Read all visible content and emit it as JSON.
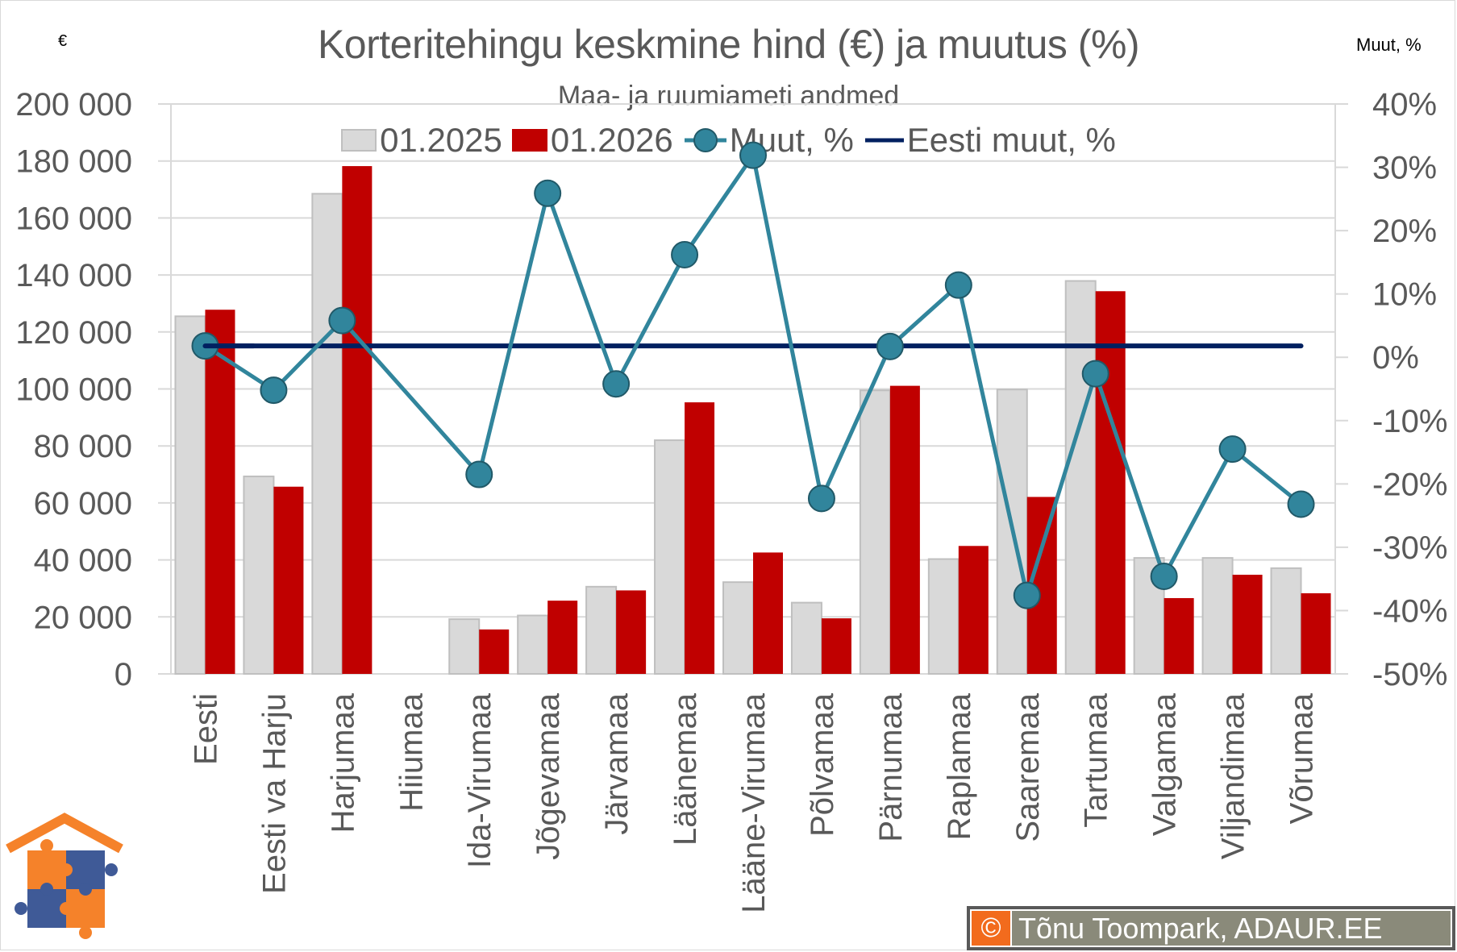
{
  "header": {
    "title": "Korteritehingu keskmine hind (€) ja muutus (%)",
    "subtitle": "Maa- ja ruumiameti andmed",
    "left_unit": "€",
    "right_unit": "Muut, %"
  },
  "legend": {
    "items": [
      {
        "label": "01.2025",
        "color": "#d9d9d9",
        "type": "bar"
      },
      {
        "label": "01.2026",
        "color": "#c00000",
        "type": "bar"
      },
      {
        "label": "Muut, %",
        "color": "#31859c",
        "type": "line-marker"
      },
      {
        "label": "Eesti muut, %",
        "color": "#002060",
        "type": "line"
      }
    ]
  },
  "credit": {
    "icon": "©",
    "text": "Tõnu Toompark, ADAUR.EE"
  },
  "colors": {
    "bar_2025": "#d9d9d9",
    "bar_2025_border": "#bfbfbf",
    "bar_2026": "#c00000",
    "muut_line": "#31859c",
    "muut_marker_border": "#215968",
    "eesti_line": "#002060",
    "grid": "#d9d9d9",
    "axis_text": "#595959",
    "logo_orange": "#f5822a",
    "logo_blue": "#3f5a97"
  },
  "chart_data": {
    "type": "bar",
    "title": "Korteritehingu keskmine hind (€) ja muutus (%)",
    "subtitle": "Maa- ja ruumiameti andmed",
    "xlabel": "",
    "ylabel": "€",
    "y2label": "Muut, %",
    "ylim": [
      0,
      200000
    ],
    "y2lim": [
      -50,
      40
    ],
    "yticks": [
      "0",
      "20 000",
      "40 000",
      "60 000",
      "80 000",
      "100 000",
      "120 000",
      "140 000",
      "160 000",
      "180 000",
      "200 000"
    ],
    "y2ticks": [
      "-50%",
      "-40%",
      "-30%",
      "-20%",
      "-10%",
      "0%",
      "10%",
      "20%",
      "30%",
      "40%"
    ],
    "grid": true,
    "legend_position": "top",
    "categories": [
      "Eesti",
      "Eesti va Harju",
      "Harjumaa",
      "Hiiumaa",
      "Ida-Virumaa",
      "Jõgevamaa",
      "Järvamaa",
      "Läänemaa",
      "Lääne-Virumaa",
      "Põlvamaa",
      "Pärnumaa",
      "Raplamaa",
      "Saaremaa",
      "Tartumaa",
      "Valgamaa",
      "Viljandimaa",
      "Võrumaa"
    ],
    "series": [
      {
        "name": "01.2025",
        "type": "bar",
        "axis": "left",
        "values": [
          125500,
          69300,
          168500,
          null,
          19200,
          20500,
          30600,
          82000,
          32200,
          25000,
          99500,
          40300,
          99800,
          137900,
          40700,
          40700,
          37100
        ]
      },
      {
        "name": "01.2026",
        "type": "bar",
        "axis": "left",
        "values": [
          127800,
          65700,
          178200,
          null,
          15600,
          25700,
          29300,
          95300,
          42600,
          19500,
          101100,
          44900,
          62100,
          134300,
          26600,
          34800,
          28300
        ]
      },
      {
        "name": "Muut, %",
        "type": "line",
        "axis": "right",
        "values": [
          1.8,
          -5.2,
          5.8,
          null,
          -18.5,
          25.9,
          -4.2,
          16.2,
          31.9,
          -22.3,
          1.7,
          11.4,
          -37.6,
          -2.6,
          -34.6,
          -14.5,
          -23.2
        ]
      },
      {
        "name": "Eesti muut, %",
        "type": "line",
        "axis": "right",
        "values": [
          1.8,
          1.8,
          1.8,
          1.8,
          1.8,
          1.8,
          1.8,
          1.8,
          1.8,
          1.8,
          1.8,
          1.8,
          1.8,
          1.8,
          1.8,
          1.8,
          1.8
        ]
      }
    ]
  }
}
